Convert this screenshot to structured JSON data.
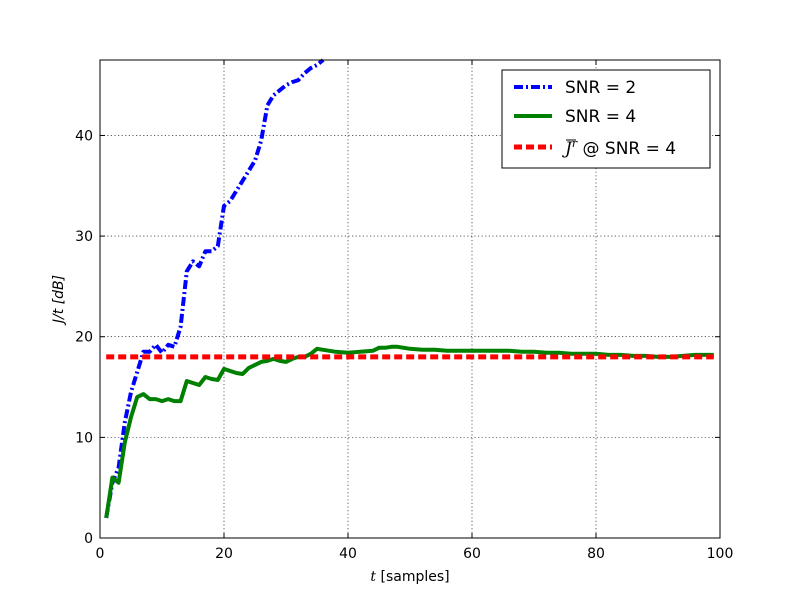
{
  "chart_data": {
    "type": "line",
    "xlabel": {
      "var": "t",
      "rest": " [samples]"
    },
    "ylabel": "J/t [dB]",
    "xlim": [
      0,
      100
    ],
    "ylim": [
      0,
      47.5
    ],
    "xticks": [
      0,
      20,
      40,
      60,
      80,
      100
    ],
    "yticks": [
      0,
      10,
      20,
      30,
      40
    ],
    "xtick_labels": [
      "0",
      "20",
      "40",
      "60",
      "80",
      "100"
    ],
    "ytick_labels": [
      "0",
      "10",
      "20",
      "30",
      "40"
    ],
    "grid": true,
    "legend": {
      "position": "top-right"
    },
    "series": [
      {
        "name": "SNR = 2",
        "color": "#0000ff",
        "style": "dash-dot",
        "x": [
          1,
          2,
          3,
          4,
          5,
          6,
          7,
          8,
          9,
          10,
          11,
          12,
          13,
          14,
          15,
          16,
          17,
          18,
          19,
          20,
          21,
          22,
          23,
          24,
          25,
          26,
          27,
          28,
          29,
          30,
          31,
          32,
          33,
          34,
          35,
          36
        ],
        "y": [
          2.0,
          5.5,
          7.0,
          11.5,
          14.5,
          16.5,
          18.5,
          18.5,
          19.2,
          18.4,
          19.2,
          19.0,
          21.0,
          26.5,
          27.5,
          27.0,
          28.5,
          28.5,
          29.0,
          33.0,
          33.5,
          34.5,
          35.5,
          36.5,
          37.5,
          39.5,
          43.0,
          44.0,
          44.5,
          45.0,
          45.3,
          45.5,
          46.2,
          46.7,
          47.0,
          47.5
        ]
      },
      {
        "name": "SNR = 4",
        "color": "#008000",
        "style": "solid",
        "x": [
          1,
          2,
          3,
          4,
          5,
          6,
          7,
          8,
          9,
          10,
          11,
          12,
          13,
          14,
          15,
          16,
          17,
          18,
          19,
          20,
          21,
          22,
          23,
          24,
          25,
          26,
          27,
          28,
          29,
          30,
          31,
          32,
          33,
          34,
          35,
          36,
          38,
          40,
          42,
          44,
          45,
          46,
          47,
          48,
          50,
          52,
          54,
          56,
          58,
          60,
          62,
          64,
          66,
          68,
          70,
          72,
          74,
          76,
          78,
          80,
          82,
          84,
          86,
          88,
          90,
          92,
          94,
          96,
          98,
          99
        ],
        "y": [
          2.0,
          6.0,
          5.5,
          9.5,
          12.0,
          14.0,
          14.3,
          13.8,
          13.8,
          13.6,
          13.8,
          13.6,
          13.6,
          15.6,
          15.4,
          15.2,
          16.0,
          15.8,
          15.7,
          16.8,
          16.6,
          16.4,
          16.3,
          16.9,
          17.2,
          17.5,
          17.6,
          17.8,
          17.6,
          17.5,
          17.8,
          18.0,
          18.0,
          18.3,
          18.8,
          18.7,
          18.5,
          18.4,
          18.5,
          18.6,
          18.9,
          18.9,
          19.0,
          19.0,
          18.8,
          18.7,
          18.7,
          18.6,
          18.6,
          18.6,
          18.6,
          18.6,
          18.6,
          18.5,
          18.5,
          18.4,
          18.4,
          18.3,
          18.3,
          18.3,
          18.2,
          18.2,
          18.1,
          18.1,
          18.0,
          18.0,
          18.1,
          18.2,
          18.2,
          18.2
        ]
      },
      {
        "name": "J̄ʳ @ SNR = 4",
        "legend_var": "J",
        "legend_rest": " @ SNR = 4",
        "color": "#ff0000",
        "style": "dashed",
        "x": [
          1,
          99
        ],
        "y": [
          18.0,
          18.0
        ]
      }
    ]
  }
}
